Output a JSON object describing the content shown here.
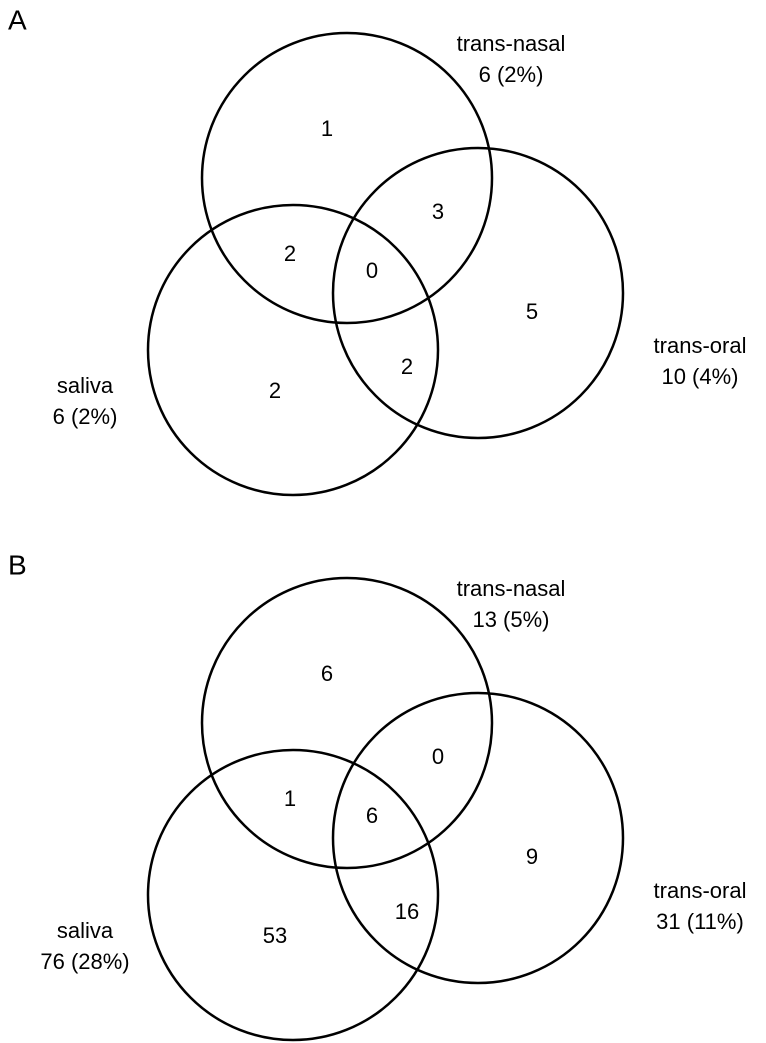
{
  "panels": [
    {
      "label": "A",
      "sets": [
        {
          "name": "trans-nasal",
          "count": "6 (2%)"
        },
        {
          "name": "trans-oral",
          "count": "10 (4%)"
        },
        {
          "name": "saliva",
          "count": "6 (2%)"
        }
      ],
      "regions": [
        1,
        3,
        2,
        0,
        5,
        2,
        2
      ]
    },
    {
      "label": "B",
      "sets": [
        {
          "name": "trans-nasal",
          "count": "13 (5%)"
        },
        {
          "name": "trans-oral",
          "count": "31 (11%)"
        },
        {
          "name": "saliva",
          "count": "76 (28%)"
        }
      ],
      "regions": [
        6,
        0,
        1,
        6,
        9,
        16,
        53
      ]
    }
  ]
}
